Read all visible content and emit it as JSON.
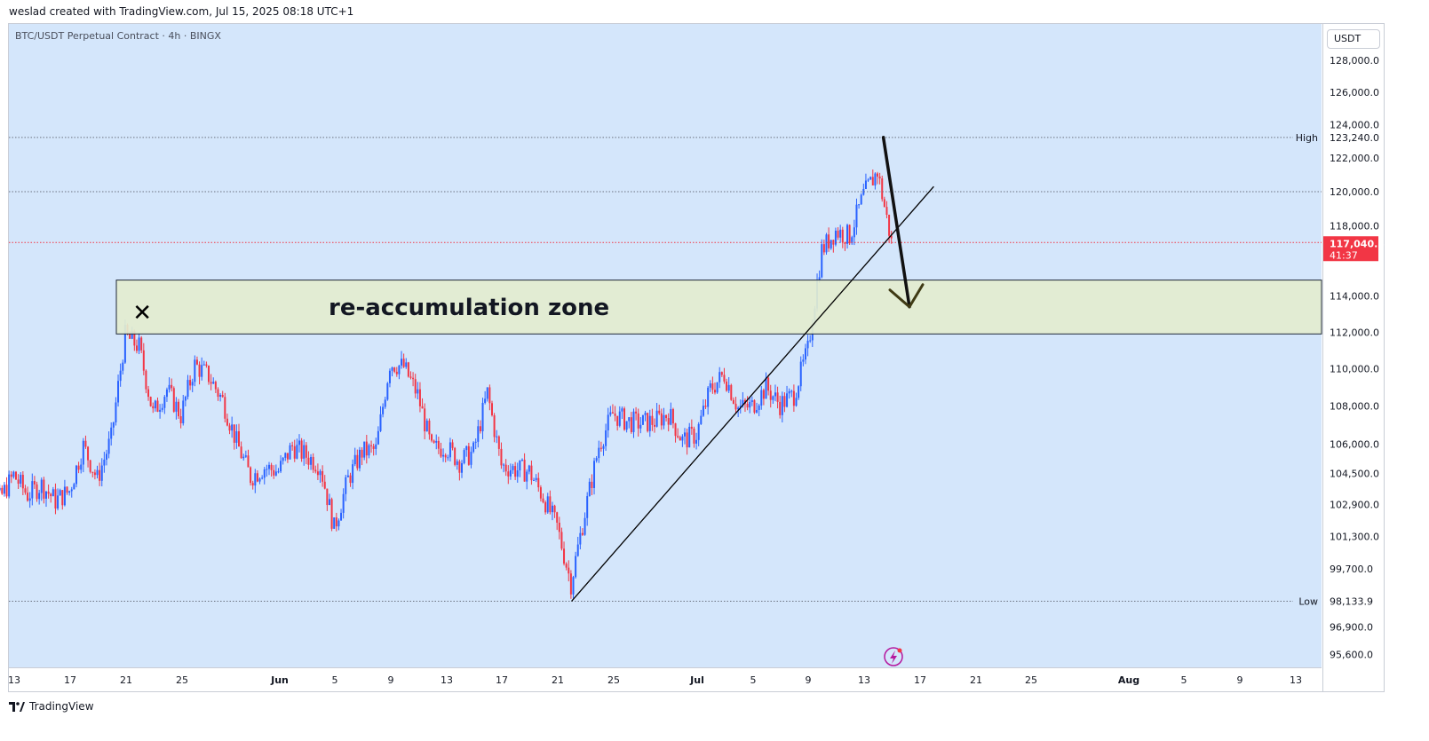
{
  "credit": "weslad created with TradingView.com, Jul 15, 2025 08:18 UTC+1",
  "symbol_title": "BTC/USDT Perpetual Contract · 4h · BINGX",
  "currency": "USDT",
  "brand": "TradingView",
  "colors": {
    "up": "#2962ff",
    "down": "#f23645",
    "background": "#d4e6fb",
    "zone": "#e3edcf",
    "price_label": "#f23645"
  },
  "chart_data": {
    "type": "candlestick",
    "instrument": "BTC/USDT Perpetual Contract",
    "interval": "4h",
    "exchange": "BINGX",
    "ylim": [
      95000,
      130300
    ],
    "y_scale": "log",
    "grid": false,
    "x_ticks": [
      "13",
      "17",
      "21",
      "25",
      "Jun",
      "5",
      "9",
      "13",
      "17",
      "21",
      "25",
      "Jul",
      "5",
      "9",
      "13",
      "17",
      "21",
      "25",
      "Aug",
      "5",
      "9",
      "13"
    ],
    "y_ticks": [
      "128,000.0",
      "126,000.0",
      "124,000.0",
      "122,000.0",
      "120,000.0",
      "118,000.0",
      "114,000.0",
      "112,000.0",
      "110,000.0",
      "108,000.0",
      "106,000.0",
      "104,500.0",
      "102,900.0",
      "101,300.0",
      "99,700.0",
      "96,900.0",
      "95,600.0"
    ],
    "high": {
      "label": "High",
      "value": "123,240.0"
    },
    "low": {
      "label": "Low",
      "value": "98,133.9"
    },
    "last_price": {
      "value": "117,040.5",
      "countdown": "41:37"
    },
    "zone": {
      "label": "re-accumulation zone",
      "from": 111900,
      "to": 114900
    },
    "trendline": {
      "from": {
        "date": "Jun 22",
        "price": 98133.9
      },
      "to": {
        "date": "Jul 18",
        "price": 120300
      }
    },
    "arrow": {
      "from": {
        "date": "Jul 14",
        "price": 123240
      },
      "to": {
        "date": "Jul 16",
        "price": 113400
      }
    },
    "marker": {
      "symbol": "✕",
      "date": "May 22",
      "price": 112900
    },
    "path": [
      [
        "May 10",
        103500
      ],
      [
        "May 11",
        104600
      ],
      [
        "May 12",
        103200
      ],
      [
        "May 13",
        104400
      ],
      [
        "May 14",
        103400
      ],
      [
        "May 15",
        103900
      ],
      [
        "May 16",
        103100
      ],
      [
        "May 17",
        103600
      ],
      [
        "May 18",
        105900
      ],
      [
        "May 19",
        104200
      ],
      [
        "May 20",
        106300
      ],
      [
        "May 21",
        111800
      ],
      [
        "May 22",
        111200
      ],
      [
        "May 23",
        107600
      ],
      [
        "May 24",
        108900
      ],
      [
        "May 25",
        107500
      ],
      [
        "May 26",
        110200
      ],
      [
        "May 27",
        109600
      ],
      [
        "May 28",
        108300
      ],
      [
        "May 29",
        106100
      ],
      [
        "May 30",
        104300
      ],
      [
        "May 31",
        104800
      ],
      [
        "Jun 1",
        104600
      ],
      [
        "Jun 2",
        105900
      ],
      [
        "Jun 3",
        105400
      ],
      [
        "Jun 4",
        104900
      ],
      [
        "Jun 5",
        101700
      ],
      [
        "Jun 6",
        104200
      ],
      [
        "Jun 7",
        105600
      ],
      [
        "Jun 8",
        105700
      ],
      [
        "Jun 9",
        110300
      ],
      [
        "Jun 10",
        110100
      ],
      [
        "Jun 11",
        108600
      ],
      [
        "Jun 12",
        105700
      ],
      [
        "Jun 13",
        105900
      ],
      [
        "Jun 14",
        105100
      ],
      [
        "Jun 15",
        105600
      ],
      [
        "Jun 16",
        108700
      ],
      [
        "Jun 17",
        104900
      ],
      [
        "Jun 18",
        104700
      ],
      [
        "Jun 19",
        104600
      ],
      [
        "Jun 20",
        103300
      ],
      [
        "Jun 21",
        101800
      ],
      [
        "Jun 22",
        99000
      ],
      [
        "Jun 23",
        102500
      ],
      [
        "Jun 24",
        105900
      ],
      [
        "Jun 25",
        107600
      ],
      [
        "Jun 26",
        107200
      ],
      [
        "Jun 27",
        107100
      ],
      [
        "Jun 28",
        107200
      ],
      [
        "Jun 29",
        107600
      ],
      [
        "Jun 30",
        106200
      ],
      [
        "Jul 1",
        106500
      ],
      [
        "Jul 2",
        108900
      ],
      [
        "Jul 3",
        109700
      ],
      [
        "Jul 4",
        107900
      ],
      [
        "Jul 5",
        108000
      ],
      [
        "Jul 6",
        109000
      ],
      [
        "Jul 7",
        108100
      ],
      [
        "Jul 8",
        108600
      ],
      [
        "Jul 9",
        111000
      ],
      [
        "Jul 10",
        116600
      ],
      [
        "Jul 11",
        117700
      ],
      [
        "Jul 12",
        117400
      ],
      [
        "Jul 13",
        119800
      ],
      [
        "Jul 14",
        121200
      ],
      [
        "Jul 15",
        117040
      ]
    ]
  }
}
